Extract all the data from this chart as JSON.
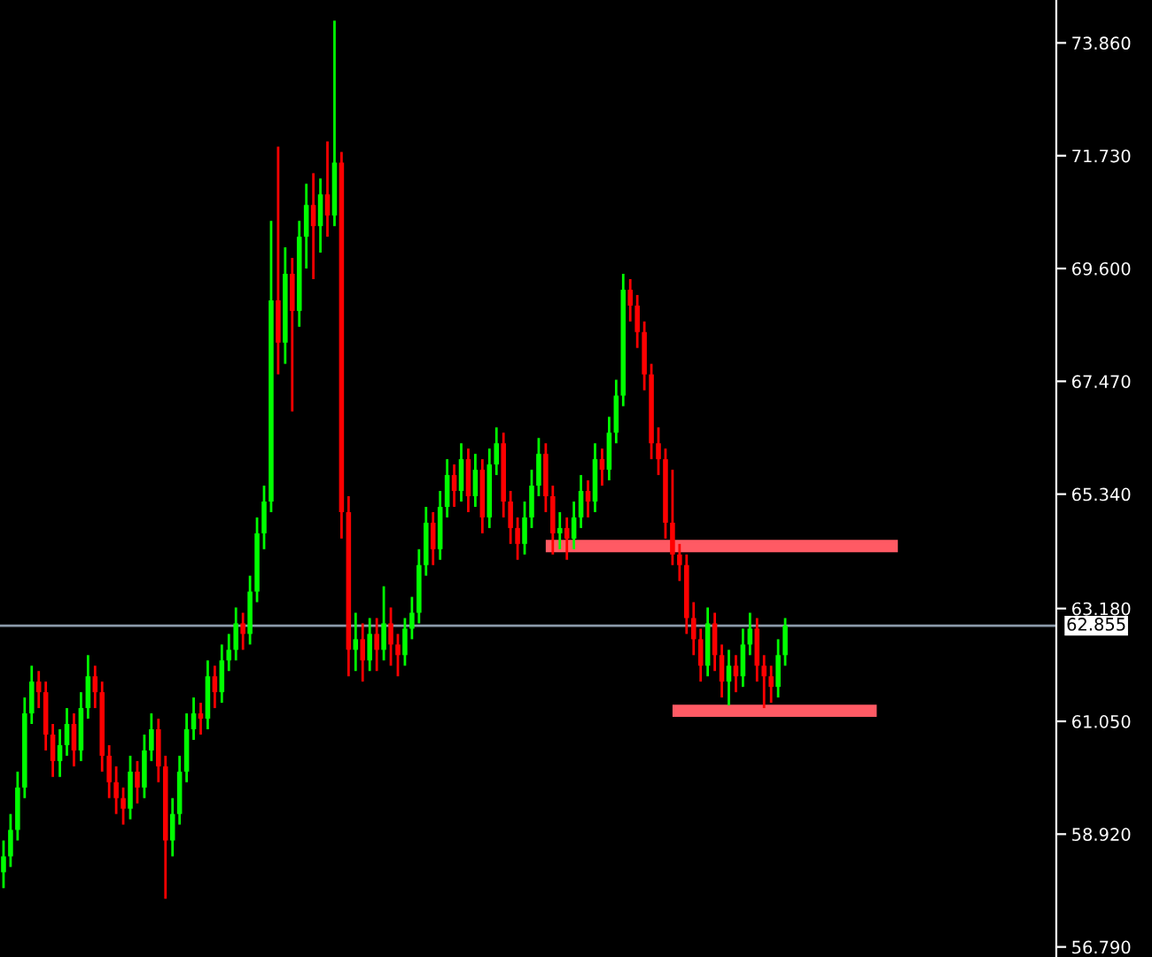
{
  "chart_data": {
    "type": "candlestick",
    "tick_labels": "y",
    "categories": [
      null,
      null,
      null,
      null,
      null,
      null,
      null,
      null,
      null,
      null,
      null,
      null,
      null,
      null,
      null,
      null,
      null,
      null,
      null,
      null,
      null,
      null,
      null,
      null,
      null,
      null,
      null,
      null,
      null,
      null,
      null,
      null,
      null,
      null,
      null,
      null,
      null,
      null,
      null,
      null,
      null,
      null,
      null,
      null,
      null,
      null,
      null,
      null,
      null,
      null,
      null,
      null,
      null,
      null,
      null,
      null,
      null,
      null,
      null,
      null,
      null,
      null,
      null,
      null,
      null,
      null,
      null,
      null,
      null,
      null,
      null,
      null,
      null,
      null,
      null,
      null,
      null,
      null,
      null,
      null,
      null,
      null,
      null,
      null,
      null,
      null,
      null,
      null,
      null,
      null,
      null,
      null,
      null,
      null,
      null,
      null,
      null,
      null,
      null,
      null,
      null,
      null,
      null,
      null,
      null,
      null,
      null,
      null,
      null,
      null,
      null,
      null,
      null,
      null,
      null,
      null,
      null,
      null,
      null,
      null,
      null,
      null,
      null,
      null,
      null,
      null,
      null,
      null,
      null,
      null,
      null,
      null,
      null,
      null,
      null,
      null,
      null,
      null,
      null,
      null,
      null,
      null,
      null,
      null,
      null,
      null,
      null,
      null,
      null,
      null
    ],
    "ylim": [
      56.6,
      74.67
    ],
    "yticks": [
      {
        "value": 73.86,
        "label": "73.860"
      },
      {
        "value": 71.73,
        "label": "71.730"
      },
      {
        "value": 69.6,
        "label": "69.600"
      },
      {
        "value": 67.47,
        "label": "67.470"
      },
      {
        "value": 65.34,
        "label": "65.340"
      },
      {
        "value": 63.18,
        "label": "63.180"
      },
      {
        "value": 61.05,
        "label": "61.050"
      },
      {
        "value": 58.92,
        "label": "58.920"
      },
      {
        "value": 56.79,
        "label": "56.790"
      }
    ],
    "grid": false,
    "ref_lines": [
      {
        "axis": "y",
        "value": 62.855,
        "label": "62.855",
        "color": "#8c9bab"
      }
    ],
    "ohlc": [
      [
        58.2,
        58.8,
        57.9,
        58.5
      ],
      [
        58.5,
        59.3,
        58.3,
        59.0
      ],
      [
        59.0,
        60.1,
        58.8,
        59.8
      ],
      [
        59.8,
        61.5,
        59.6,
        61.2
      ],
      [
        61.2,
        62.1,
        61.0,
        61.8
      ],
      [
        61.8,
        62.0,
        61.3,
        61.6
      ],
      [
        61.6,
        61.8,
        60.5,
        60.8
      ],
      [
        60.8,
        61.0,
        60.0,
        60.3
      ],
      [
        60.3,
        60.9,
        60.0,
        60.6
      ],
      [
        60.6,
        61.3,
        60.4,
        61.0
      ],
      [
        61.0,
        61.2,
        60.2,
        60.5
      ],
      [
        60.5,
        61.6,
        60.3,
        61.3
      ],
      [
        61.3,
        62.3,
        61.1,
        61.9
      ],
      [
        61.9,
        62.1,
        61.3,
        61.6
      ],
      [
        61.6,
        61.8,
        60.1,
        60.4
      ],
      [
        60.4,
        60.6,
        59.6,
        59.9
      ],
      [
        59.9,
        60.2,
        59.3,
        59.6
      ],
      [
        59.6,
        59.8,
        59.1,
        59.4
      ],
      [
        59.4,
        60.4,
        59.2,
        60.1
      ],
      [
        60.1,
        60.3,
        59.5,
        59.8
      ],
      [
        59.8,
        60.8,
        59.6,
        60.5
      ],
      [
        60.5,
        61.2,
        60.3,
        60.9
      ],
      [
        60.9,
        61.1,
        59.9,
        60.2
      ],
      [
        60.2,
        60.4,
        57.7,
        58.8
      ],
      [
        58.8,
        59.6,
        58.5,
        59.3
      ],
      [
        59.3,
        60.4,
        59.1,
        60.1
      ],
      [
        60.1,
        61.2,
        59.9,
        60.9
      ],
      [
        60.9,
        61.5,
        60.7,
        61.2
      ],
      [
        61.2,
        61.4,
        60.8,
        61.1
      ],
      [
        61.1,
        62.2,
        60.9,
        61.9
      ],
      [
        61.9,
        62.1,
        61.3,
        61.6
      ],
      [
        61.6,
        62.5,
        61.4,
        62.2
      ],
      [
        62.2,
        62.7,
        62.0,
        62.4
      ],
      [
        62.4,
        63.2,
        62.2,
        62.9
      ],
      [
        62.9,
        63.1,
        62.4,
        62.7
      ],
      [
        62.7,
        63.8,
        62.5,
        63.5
      ],
      [
        63.5,
        64.9,
        63.3,
        64.6
      ],
      [
        64.6,
        65.5,
        64.3,
        65.2
      ],
      [
        65.2,
        70.5,
        65.0,
        69.0
      ],
      [
        69.0,
        71.9,
        67.6,
        68.2
      ],
      [
        68.2,
        70.0,
        67.8,
        69.5
      ],
      [
        69.5,
        69.8,
        66.9,
        68.8
      ],
      [
        68.8,
        70.5,
        68.5,
        70.2
      ],
      [
        70.2,
        71.2,
        69.6,
        70.8
      ],
      [
        70.8,
        71.4,
        69.4,
        70.4
      ],
      [
        70.4,
        71.3,
        69.9,
        71.0
      ],
      [
        71.0,
        72.0,
        70.2,
        70.6
      ],
      [
        70.6,
        74.28,
        70.4,
        71.6
      ],
      [
        71.6,
        71.8,
        64.5,
        65.0
      ],
      [
        65.0,
        65.3,
        61.9,
        62.4
      ],
      [
        62.4,
        63.1,
        62.0,
        62.6
      ],
      [
        62.6,
        62.9,
        61.8,
        62.2
      ],
      [
        62.2,
        63.0,
        62.0,
        62.7
      ],
      [
        62.7,
        63.0,
        62.0,
        62.4
      ],
      [
        62.4,
        63.6,
        62.2,
        62.9
      ],
      [
        62.9,
        63.2,
        62.1,
        62.5
      ],
      [
        62.5,
        62.7,
        61.9,
        62.3
      ],
      [
        62.3,
        63.0,
        62.1,
        62.8
      ],
      [
        62.8,
        63.4,
        62.6,
        63.1
      ],
      [
        63.1,
        64.3,
        62.9,
        64.0
      ],
      [
        64.0,
        65.1,
        63.8,
        64.8
      ],
      [
        64.8,
        65.0,
        64.0,
        64.3
      ],
      [
        64.3,
        65.4,
        64.1,
        65.1
      ],
      [
        65.1,
        66.0,
        64.9,
        65.7
      ],
      [
        65.7,
        65.9,
        65.1,
        65.4
      ],
      [
        65.4,
        66.3,
        65.2,
        66.0
      ],
      [
        66.0,
        66.2,
        65.0,
        65.3
      ],
      [
        65.3,
        66.1,
        65.1,
        65.8
      ],
      [
        65.8,
        66.0,
        64.6,
        64.9
      ],
      [
        64.9,
        66.2,
        64.7,
        65.9
      ],
      [
        65.9,
        66.6,
        65.7,
        66.3
      ],
      [
        66.3,
        66.5,
        64.9,
        65.2
      ],
      [
        65.2,
        65.4,
        64.4,
        64.7
      ],
      [
        64.7,
        64.9,
        64.1,
        64.4
      ],
      [
        64.4,
        65.2,
        64.2,
        64.9
      ],
      [
        64.9,
        65.8,
        64.7,
        65.5
      ],
      [
        65.5,
        66.4,
        65.3,
        66.1
      ],
      [
        66.1,
        66.3,
        65.0,
        65.3
      ],
      [
        65.3,
        65.5,
        64.2,
        64.6
      ],
      [
        64.6,
        65.0,
        64.3,
        64.7
      ],
      [
        64.7,
        64.9,
        64.1,
        64.5
      ],
      [
        64.5,
        65.2,
        64.3,
        64.9
      ],
      [
        64.9,
        65.7,
        64.7,
        65.4
      ],
      [
        65.4,
        65.6,
        64.9,
        65.2
      ],
      [
        65.2,
        66.3,
        65.0,
        66.0
      ],
      [
        66.0,
        66.2,
        65.5,
        65.8
      ],
      [
        65.8,
        66.8,
        65.6,
        66.5
      ],
      [
        66.5,
        67.5,
        66.3,
        67.2
      ],
      [
        67.2,
        69.5,
        67.0,
        69.2
      ],
      [
        69.2,
        69.4,
        68.6,
        68.9
      ],
      [
        68.9,
        69.1,
        68.1,
        68.4
      ],
      [
        68.4,
        68.6,
        67.3,
        67.6
      ],
      [
        67.6,
        67.8,
        66.0,
        66.3
      ],
      [
        66.3,
        66.6,
        65.7,
        66.0
      ],
      [
        66.0,
        66.2,
        64.5,
        64.8
      ],
      [
        64.8,
        65.8,
        64.0,
        64.2
      ],
      [
        64.2,
        64.4,
        63.7,
        64.0
      ],
      [
        64.0,
        64.2,
        62.7,
        63.0
      ],
      [
        63.0,
        63.3,
        62.3,
        62.6
      ],
      [
        62.6,
        62.8,
        61.8,
        62.1
      ],
      [
        62.1,
        63.2,
        61.9,
        62.9
      ],
      [
        62.9,
        63.1,
        62.0,
        62.3
      ],
      [
        62.3,
        62.5,
        61.5,
        61.8
      ],
      [
        61.8,
        62.4,
        61.35,
        62.1
      ],
      [
        62.1,
        62.3,
        61.6,
        61.9
      ],
      [
        61.9,
        62.8,
        61.7,
        62.5
      ],
      [
        62.5,
        63.1,
        62.3,
        62.8
      ],
      [
        62.8,
        63.0,
        61.8,
        62.1
      ],
      [
        62.1,
        62.3,
        61.3,
        61.9
      ],
      [
        61.9,
        62.1,
        61.4,
        61.7
      ],
      [
        61.7,
        62.6,
        61.5,
        62.3
      ],
      [
        62.3,
        63.0,
        62.1,
        62.855
      ],
      null,
      null,
      null,
      null,
      null,
      null,
      null,
      null,
      null,
      null,
      null,
      null,
      null,
      null,
      null,
      null,
      null,
      null,
      null,
      null,
      null,
      null,
      null,
      null,
      null,
      null,
      null,
      null,
      null,
      null,
      null,
      null,
      null,
      null,
      null,
      null,
      null,
      null
    ],
    "colors": [
      "#00ff00",
      "#00ff00",
      "#00ff00",
      "#00ff00",
      "#00ff00",
      "#ff0000",
      "#ff0000",
      "#ff0000",
      "#00ff00",
      "#00ff00",
      "#ff0000",
      "#00ff00",
      "#00ff00",
      "#ff0000",
      "#ff0000",
      "#ff0000",
      "#ff0000",
      "#ff0000",
      "#00ff00",
      "#ff0000",
      "#00ff00",
      "#00ff00",
      "#ff0000",
      "#ff0000",
      "#00ff00",
      "#00ff00",
      "#00ff00",
      "#00ff00",
      "#ff0000",
      "#00ff00",
      "#ff0000",
      "#00ff00",
      "#00ff00",
      "#00ff00",
      "#ff0000",
      "#00ff00",
      "#00ff00",
      "#00ff00",
      "#00ff00",
      "#ff0000",
      "#00ff00",
      "#ff0000",
      "#00ff00",
      "#00ff00",
      "#ff0000",
      "#00ff00",
      "#ff0000",
      "#00ff00",
      "#ff0000",
      "#ff0000",
      "#00ff00",
      "#ff0000",
      "#00ff00",
      "#ff0000",
      "#00ff00",
      "#ff0000",
      "#ff0000",
      "#00ff00",
      "#00ff00",
      "#00ff00",
      "#00ff00",
      "#ff0000",
      "#00ff00",
      "#00ff00",
      "#ff0000",
      "#00ff00",
      "#ff0000",
      "#00ff00",
      "#ff0000",
      "#00ff00",
      "#00ff00",
      "#ff0000",
      "#ff0000",
      "#ff0000",
      "#00ff00",
      "#00ff00",
      "#00ff00",
      "#ff0000",
      "#ff0000",
      "#00ff00",
      "#ff0000",
      "#00ff00",
      "#00ff00",
      "#ff0000",
      "#00ff00",
      "#ff0000",
      "#00ff00",
      "#00ff00",
      "#00ff00",
      "#ff0000",
      "#ff0000",
      "#ff0000",
      "#ff0000",
      "#ff0000",
      "#ff0000",
      "#ff0000",
      "#ff0000",
      "#ff0000",
      "#ff0000",
      "#ff0000",
      "#00ff00",
      "#ff0000",
      "#ff0000",
      "#00ff00",
      "#ff0000",
      "#00ff00",
      "#00ff00",
      "#ff0000",
      "#ff0000",
      "#ff0000",
      "#00ff00",
      "#00ff00",
      null,
      null,
      null,
      null,
      null,
      null,
      null,
      null,
      null,
      null,
      null,
      null,
      null,
      null,
      null,
      null,
      null,
      null,
      null,
      null,
      null,
      null,
      null,
      null,
      null,
      null,
      null,
      null,
      null,
      null,
      null,
      null,
      null,
      null,
      null,
      null,
      null,
      null
    ],
    "series": [
      {
        "type": "line",
        "color": "#ff5a64",
        "values": [
          null,
          null,
          null,
          null,
          null,
          null,
          null,
          null,
          null,
          null,
          null,
          null,
          null,
          null,
          null,
          null,
          null,
          null,
          null,
          null,
          null,
          null,
          null,
          null,
          null,
          null,
          null,
          null,
          null,
          null,
          null,
          null,
          null,
          null,
          null,
          null,
          null,
          null,
          null,
          null,
          null,
          null,
          null,
          null,
          null,
          null,
          null,
          null,
          null,
          null,
          null,
          null,
          null,
          null,
          null,
          null,
          null,
          null,
          null,
          null,
          null,
          null,
          null,
          null,
          null,
          null,
          null,
          null,
          null,
          null,
          null,
          null,
          null,
          null,
          null,
          null,
          null,
          64.36,
          64.36,
          64.36,
          64.36,
          64.36,
          64.36,
          64.36,
          64.36,
          64.36,
          64.36,
          64.36,
          64.36,
          64.36,
          64.36,
          64.36,
          64.36,
          64.36,
          64.36,
          64.36,
          64.36,
          64.36,
          64.36,
          64.36,
          64.36,
          64.36,
          64.36,
          64.36,
          64.36,
          64.36,
          64.36,
          64.36,
          64.36,
          64.36,
          64.36,
          64.36,
          64.36,
          64.36,
          64.36,
          64.36,
          64.36,
          64.36,
          64.36,
          64.36,
          64.36,
          64.36,
          64.36,
          64.36,
          64.36,
          64.36,
          64.36,
          64.36,
          null,
          null,
          null,
          null,
          null,
          null,
          null,
          null,
          null,
          null,
          null,
          null,
          null,
          null,
          null,
          null,
          null,
          null,
          null,
          null,
          null,
          null
        ]
      },
      {
        "type": "line",
        "color": "#ff5a64",
        "values": [
          null,
          null,
          null,
          null,
          null,
          null,
          null,
          null,
          null,
          null,
          null,
          null,
          null,
          null,
          null,
          null,
          null,
          null,
          null,
          null,
          null,
          null,
          null,
          null,
          null,
          null,
          null,
          null,
          null,
          null,
          null,
          null,
          null,
          null,
          null,
          null,
          null,
          null,
          null,
          null,
          null,
          null,
          null,
          null,
          null,
          null,
          null,
          null,
          null,
          null,
          null,
          null,
          null,
          null,
          null,
          null,
          null,
          null,
          null,
          null,
          null,
          null,
          null,
          null,
          null,
          null,
          null,
          null,
          null,
          null,
          null,
          null,
          null,
          null,
          null,
          null,
          null,
          null,
          null,
          null,
          null,
          null,
          null,
          null,
          null,
          null,
          null,
          null,
          null,
          null,
          null,
          null,
          null,
          null,
          null,
          61.25,
          61.25,
          61.25,
          61.25,
          61.25,
          61.25,
          61.25,
          61.25,
          61.25,
          61.25,
          61.25,
          61.25,
          61.25,
          61.25,
          61.25,
          61.25,
          61.25,
          61.25,
          61.25,
          61.25,
          61.25,
          61.25,
          61.25,
          61.25,
          61.25,
          61.25,
          61.25,
          61.25,
          61.25,
          61.25,
          null,
          null,
          null,
          null,
          null,
          null,
          null,
          null,
          null,
          null,
          null,
          null,
          null,
          null,
          null,
          null,
          null,
          null,
          null,
          null,
          null,
          null,
          null,
          null,
          null
        ]
      }
    ]
  }
}
